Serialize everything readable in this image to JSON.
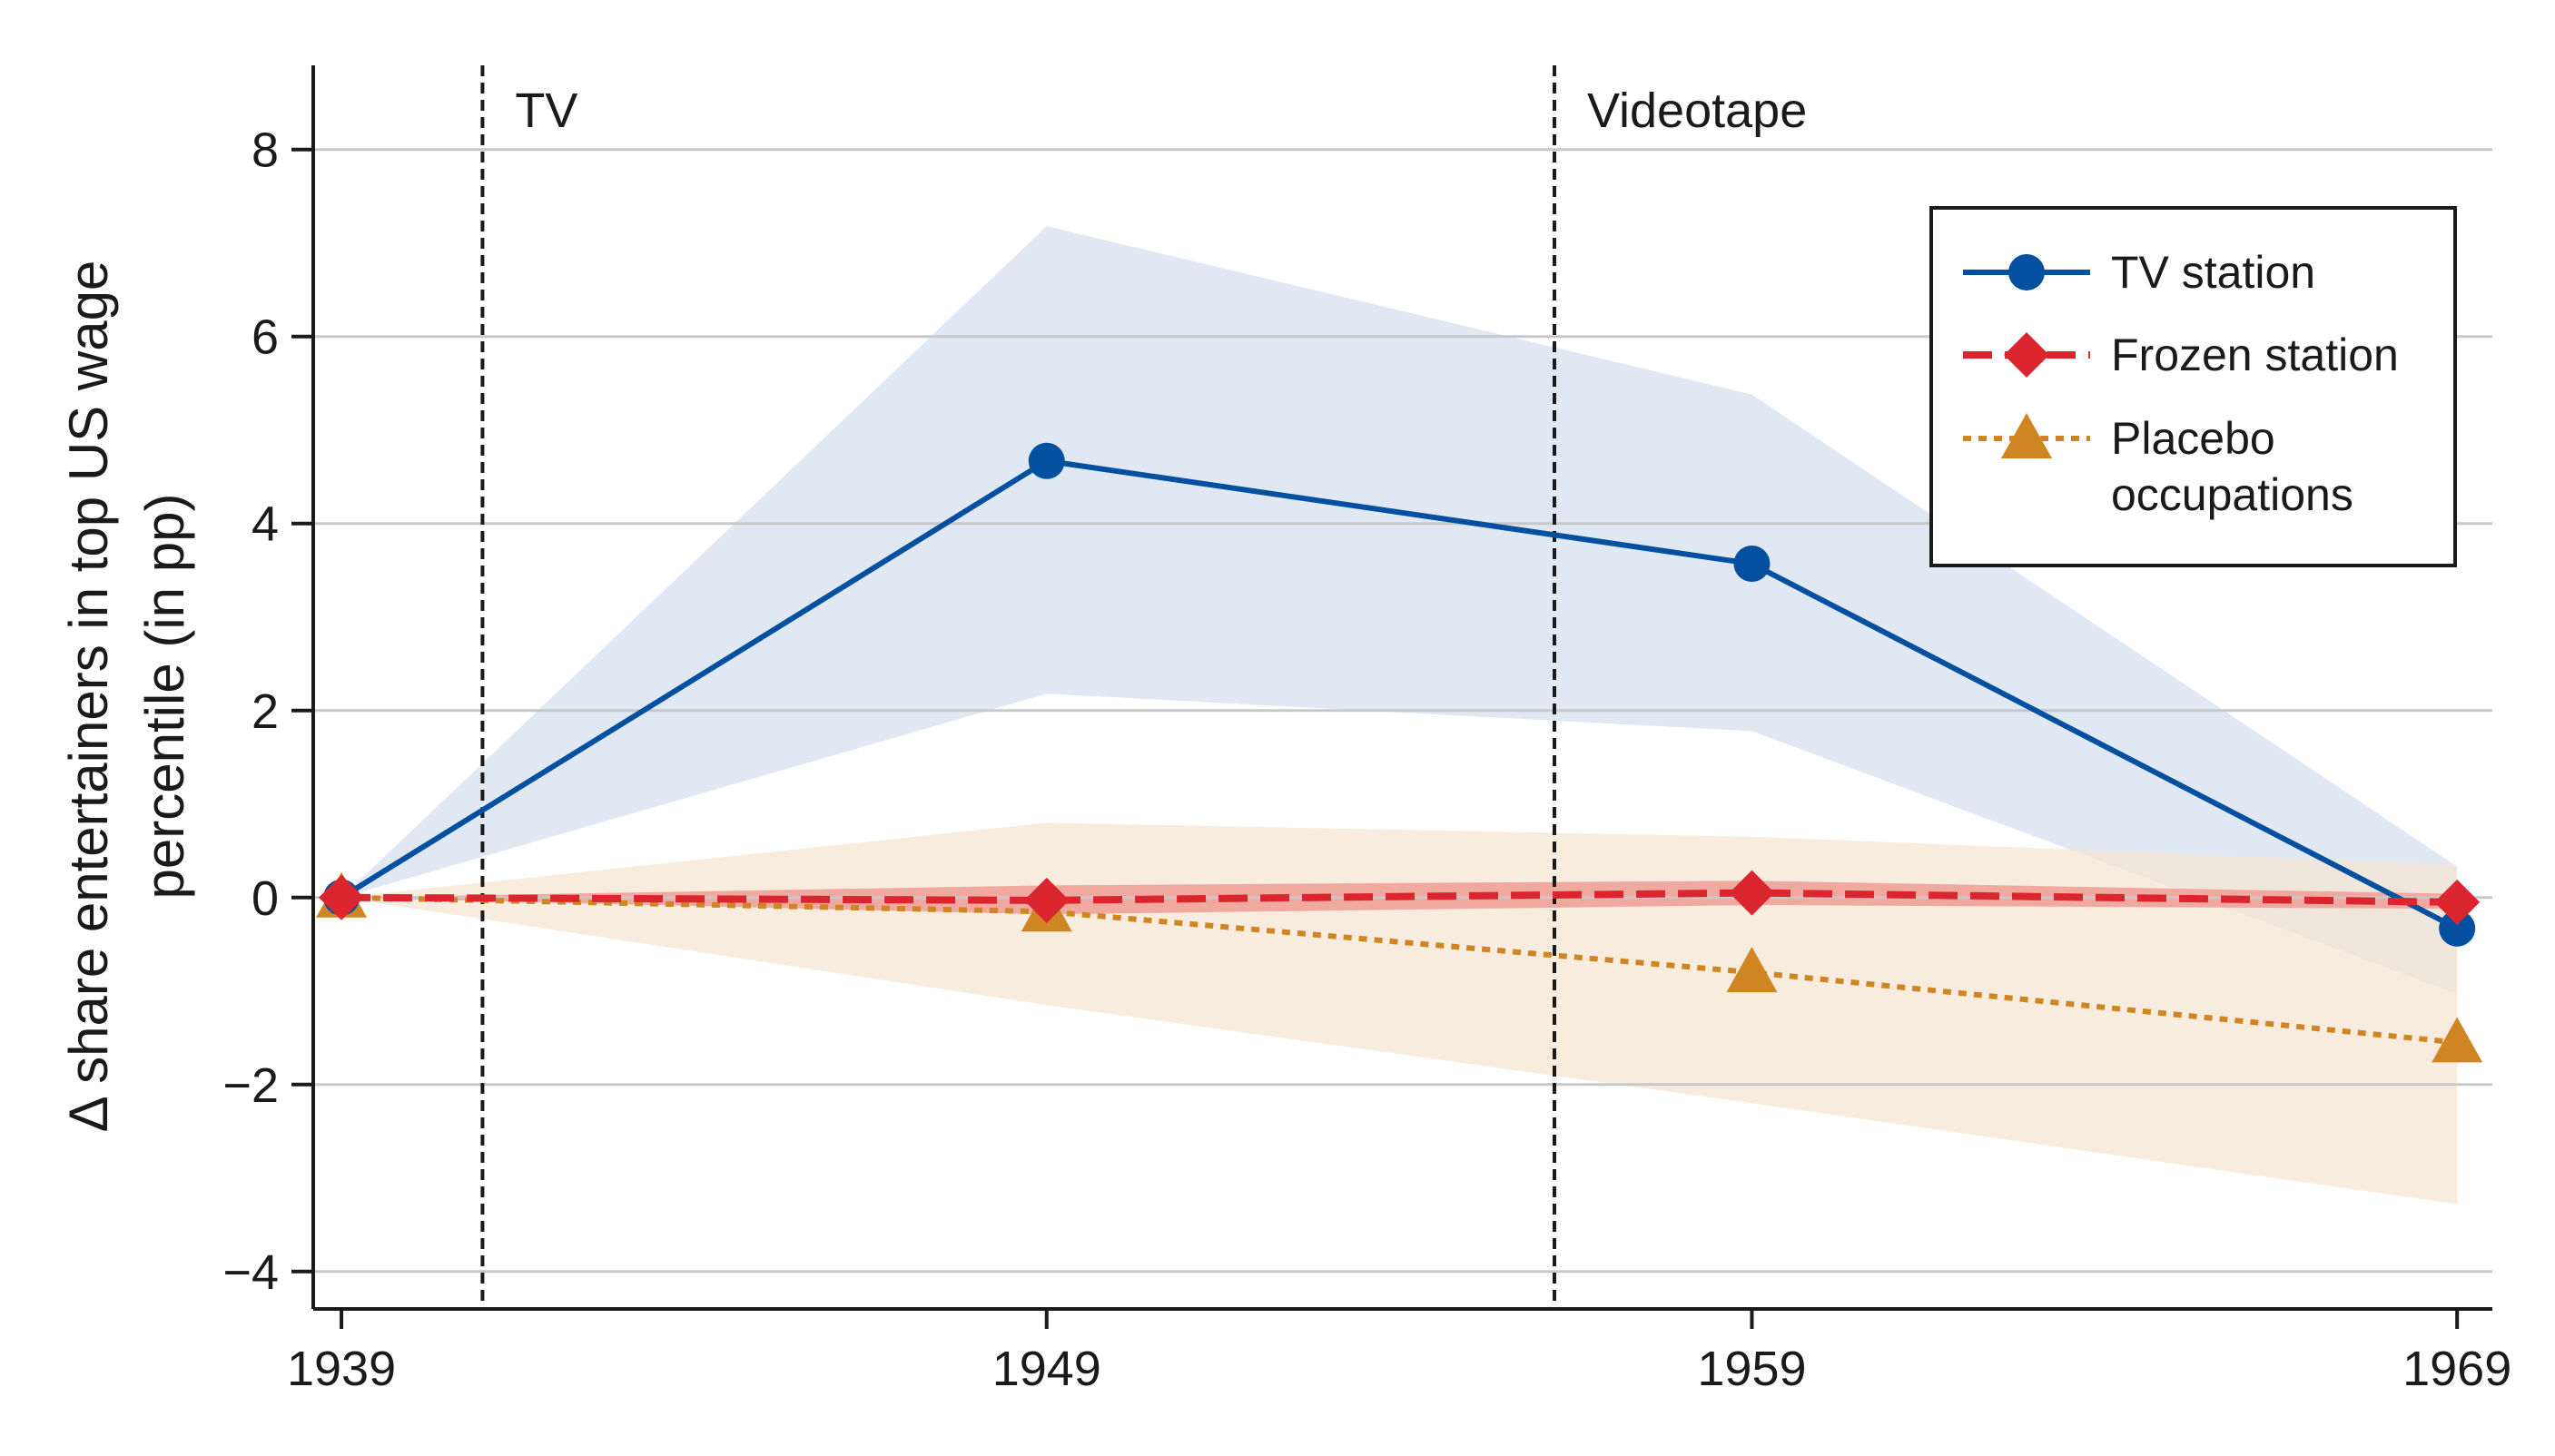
{
  "chart_data": {
    "type": "line",
    "title": "",
    "xlabel": "",
    "ylabel_lines": [
      "Δ share entertainers in top US wage",
      "percentile (in pp)"
    ],
    "x": [
      1939,
      1949,
      1959,
      1969
    ],
    "x_tick_labels": [
      "1939",
      "1949",
      "1959",
      "1969"
    ],
    "xlim": [
      1938.6,
      1969.5
    ],
    "ylim": [
      -4.4,
      8.9
    ],
    "y_ticks": [
      8,
      6,
      4,
      2,
      0,
      -2,
      -4
    ],
    "y_tick_labels": [
      "8",
      "6",
      "4",
      "2",
      "0",
      "−2",
      "−4"
    ],
    "grid": true,
    "legend_position": "top-right",
    "series": [
      {
        "name": "TV station",
        "values": [
          0,
          4.67,
          3.57,
          -0.33
        ],
        "ci_lower": [
          0,
          2.18,
          1.78,
          -1.03
        ],
        "ci_upper": [
          0,
          7.18,
          5.38,
          0.33
        ],
        "color": "#0450a0",
        "band_color": "#dde6f2",
        "line_style": "solid",
        "marker": "circle"
      },
      {
        "name": "Frozen station",
        "values": [
          0,
          -0.03,
          0.05,
          -0.05
        ],
        "ci_lower": [
          0,
          -0.18,
          -0.08,
          -0.12
        ],
        "ci_upper": [
          0,
          0.13,
          0.18,
          0.04
        ],
        "color": "#db2630",
        "band_color": "#ef9e94",
        "line_style": "dashed",
        "marker": "diamond"
      },
      {
        "name": "Placebo occupations",
        "legend_lines": [
          "Placebo",
          "occupations"
        ],
        "values": [
          0,
          -0.15,
          -0.8,
          -1.55
        ],
        "ci_lower": [
          0,
          -1.15,
          -2.2,
          -3.28
        ],
        "ci_upper": [
          0,
          0.8,
          0.65,
          0.35
        ],
        "color": "#d08523",
        "band_color": "#f6e6d4",
        "line_style": "dotted",
        "marker": "triangle"
      }
    ],
    "vertical_lines": [
      {
        "x": 1941,
        "label": "TV"
      },
      {
        "x": 1956.2,
        "label": "Videotape"
      }
    ]
  }
}
